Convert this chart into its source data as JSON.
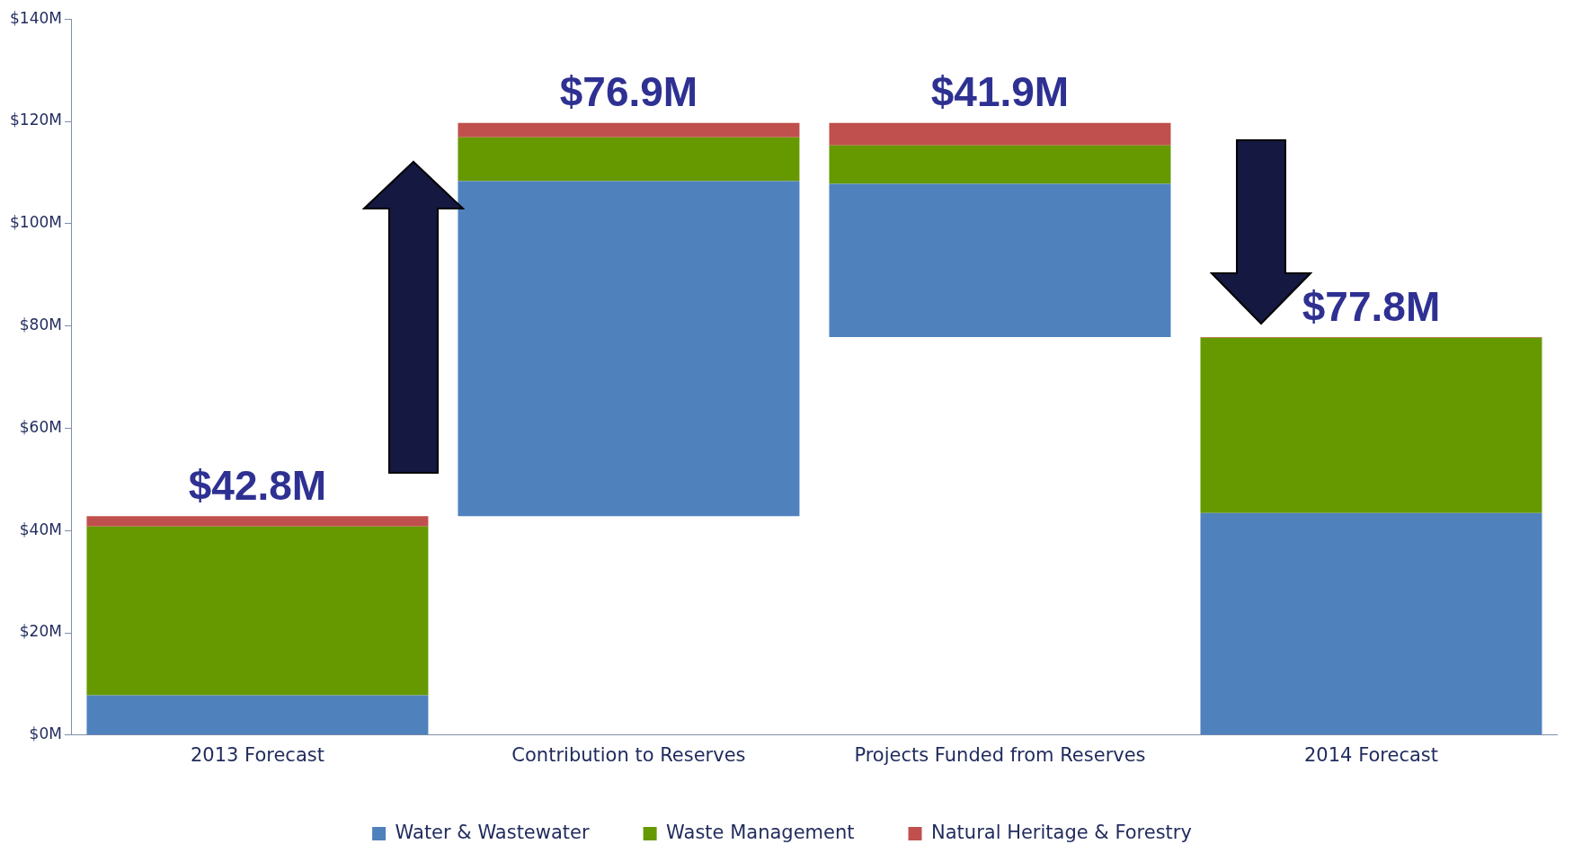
{
  "chart_data": {
    "type": "bar",
    "categories": [
      "2013 Forecast",
      "Contribution to Reserves",
      "Projects Funded from Reserves",
      "2014 Forecast"
    ],
    "series": [
      {
        "name": "Water & Wastewater",
        "color": "#4f81bd",
        "base": [
          0,
          42.8,
          77.8,
          0
        ],
        "values": [
          7.8,
          65.5,
          30.0,
          43.4
        ]
      },
      {
        "name": "Waste Management",
        "color": "#669900",
        "base": [
          7.8,
          108.3,
          107.8,
          43.4
        ],
        "values": [
          33.0,
          8.6,
          7.5,
          34.3
        ]
      },
      {
        "name": "Natural Heritage & Forestry",
        "color": "#c0504d",
        "base": [
          40.8,
          116.9,
          115.3,
          77.7
        ],
        "values": [
          2.0,
          2.8,
          4.4,
          0.1
        ]
      }
    ],
    "annotations": [
      {
        "text": "$42.8M",
        "x": "2013 Forecast",
        "y": 42.8
      },
      {
        "text": "$76.9M",
        "x": "Contribution to Reserves",
        "y": 119.7
      },
      {
        "text": "$41.9M",
        "x": "Projects Funded from Reserves",
        "y": 119.7
      },
      {
        "text": "$77.8M",
        "x": "2014 Forecast",
        "y": 77.8
      }
    ],
    "ylim": [
      0,
      140
    ],
    "yticks": [
      {
        "value": 0,
        "label": "$0M"
      },
      {
        "value": 20,
        "label": "$20M"
      },
      {
        "value": 40,
        "label": "$40M"
      },
      {
        "value": 60,
        "label": "$60M"
      },
      {
        "value": 80,
        "label": "$80M"
      },
      {
        "value": 100,
        "label": "$100M"
      },
      {
        "value": 120,
        "label": "$120M"
      },
      {
        "value": 140,
        "label": "$140M"
      }
    ],
    "grid": false,
    "legend": "bottom"
  }
}
